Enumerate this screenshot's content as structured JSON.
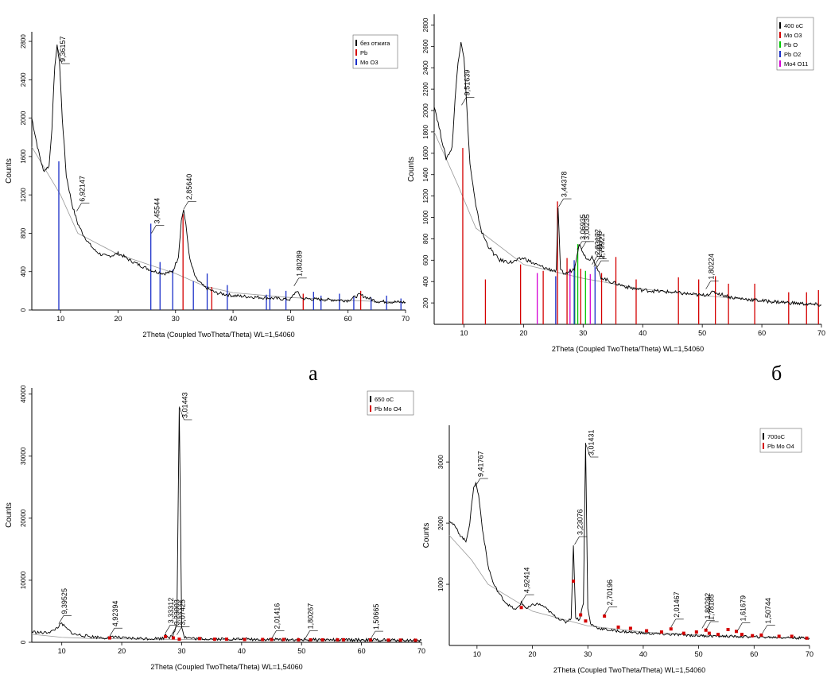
{
  "figure": {
    "panel_letters": [
      "а",
      "б"
    ]
  },
  "chart_data": [
    {
      "type": "line",
      "panel": "а",
      "xlabel": "2Theta (Coupled TwoTheta/Theta) WL=1,54060",
      "ylabel": "Counts",
      "xlim": [
        5,
        70
      ],
      "ylim": [
        0,
        2900
      ],
      "xticks": [
        10,
        20,
        30,
        40,
        50,
        60,
        70
      ],
      "yticks": [
        0,
        400,
        800,
        1200,
        1600,
        2000,
        2400,
        2800
      ],
      "legend_position": "top-right",
      "legend": [
        {
          "label": "без отжига",
          "color": "#000000"
        },
        {
          "label": "Pb",
          "color": "#d40000"
        },
        {
          "label": "Mo O3",
          "color": "#1a2fc8"
        }
      ],
      "series": [
        {
          "name": "без отжига",
          "color": "#000000",
          "x": [
            5,
            6,
            7,
            8,
            8.5,
            9,
            9.4,
            9.8,
            10.3,
            11,
            12,
            13,
            14,
            15,
            16,
            17,
            18,
            19,
            20,
            21,
            22,
            24,
            26,
            28,
            29.5,
            30.5,
            31,
            31.4,
            31.8,
            32.5,
            33.5,
            35,
            37,
            40,
            45,
            50,
            51,
            52,
            55,
            60,
            62,
            65,
            70
          ],
          "y": [
            2000,
            1700,
            1450,
            1500,
            1900,
            2550,
            2750,
            2600,
            2000,
            1400,
            1100,
            900,
            780,
            690,
            620,
            580,
            560,
            570,
            590,
            560,
            520,
            460,
            410,
            380,
            400,
            560,
            930,
            1050,
            880,
            520,
            330,
            240,
            180,
            150,
            130,
            110,
            200,
            120,
            110,
            100,
            160,
            90,
            80
          ]
        }
      ],
      "background": {
        "x": [
          5,
          10,
          13,
          20,
          30,
          35,
          40,
          50,
          60,
          70
        ],
        "y": [
          1700,
          1200,
          800,
          580,
          380,
          250,
          180,
          130,
          100,
          80
        ]
      },
      "reference_lines": [
        {
          "phase": "Pb",
          "color": "#d40000",
          "x": [
            31.3,
            36.3,
            52.2,
            62.2
          ],
          "height": [
            1000,
            240,
            170,
            200
          ]
        },
        {
          "phase": "Mo O3",
          "color": "#1a2fc8",
          "x": [
            9.7,
            25.7,
            27.3,
            29.5,
            33.1,
            35.5,
            39,
            45.8,
            46.4,
            49.2,
            54,
            55.3,
            58.5,
            61,
            64,
            66.7,
            69.2
          ],
          "height": [
            1550,
            900,
            500,
            420,
            300,
            380,
            260,
            160,
            220,
            200,
            190,
            150,
            170,
            140,
            130,
            150,
            120
          ]
        }
      ],
      "peak_labels": [
        {
          "text": "9,36157",
          "x": 9.4,
          "y": 2750
        },
        {
          "text": "6,92147",
          "x": 12.8,
          "y": 1030
        },
        {
          "text": "3,45544",
          "x": 25.8,
          "y": 800
        },
        {
          "text": "2,85640",
          "x": 31.4,
          "y": 1050
        },
        {
          "text": "1,80289",
          "x": 50.6,
          "y": 250
        }
      ]
    },
    {
      "type": "line",
      "panel": "б",
      "xlabel": "2Theta (Coupled TwoTheta/Theta) WL=1,54060",
      "ylabel": "Counts",
      "xlim": [
        5,
        70
      ],
      "ylim": [
        0,
        2900
      ],
      "xticks": [
        10,
        20,
        30,
        40,
        50,
        60,
        70
      ],
      "yticks": [
        200,
        400,
        600,
        800,
        1000,
        1200,
        1400,
        1600,
        1800,
        2000,
        2200,
        2400,
        2600,
        2800
      ],
      "legend_position": "top-right",
      "legend": [
        {
          "label": "400 оС",
          "color": "#000000"
        },
        {
          "label": "Mo O3",
          "color": "#d40000"
        },
        {
          "label": "Pb O",
          "color": "#00c800"
        },
        {
          "label": "Pb O2",
          "color": "#1a2fc8"
        },
        {
          "label": "Mo4 O11",
          "color": "#d400d4"
        }
      ],
      "series": [
        {
          "name": "400 оС",
          "color": "#000000",
          "x": [
            5,
            6,
            7,
            8,
            8.5,
            9,
            9.5,
            10,
            10.5,
            11,
            12,
            13,
            14,
            15,
            16,
            18,
            20,
            22,
            24,
            25.5,
            25.8,
            26.2,
            27,
            28.5,
            29.3,
            29.8,
            30.3,
            31,
            31.5,
            32,
            33,
            35,
            38,
            40,
            45,
            50,
            52,
            55,
            60,
            65,
            70
          ],
          "y": [
            2050,
            1800,
            1550,
            1650,
            2100,
            2450,
            2650,
            2500,
            2000,
            1500,
            1100,
            860,
            740,
            660,
            600,
            580,
            620,
            560,
            520,
            500,
            1100,
            500,
            470,
            520,
            750,
            700,
            640,
            600,
            650,
            560,
            440,
            390,
            340,
            320,
            300,
            270,
            300,
            250,
            220,
            200,
            180
          ]
        }
      ],
      "background": {
        "x": [
          5,
          9,
          12,
          20,
          30,
          40,
          50,
          60,
          70
        ],
        "y": [
          1800,
          1300,
          900,
          560,
          430,
          330,
          270,
          220,
          180
        ]
      },
      "reference_lines": [
        {
          "phase": "Mo O3",
          "color": "#d40000",
          "x": [
            9.8,
            13.6,
            19.5,
            23.3,
            25.7,
            27.3,
            29.6,
            33.1,
            35.5,
            38.9,
            46,
            49.4,
            52.2,
            54.4,
            58.8,
            64.5,
            67.5,
            69.5
          ],
          "height": [
            1650,
            420,
            560,
            500,
            1150,
            620,
            520,
            480,
            630,
            420,
            440,
            420,
            450,
            380,
            380,
            300,
            300,
            320
          ]
        },
        {
          "phase": "Pb O",
          "color": "#00c800",
          "x": [
            28.6,
            29.1,
            30.4
          ],
          "height": [
            560,
            750,
            500
          ]
        },
        {
          "phase": "Pb O2",
          "color": "#1a2fc8",
          "x": [
            25.4,
            28.5,
            32
          ],
          "height": [
            450,
            600,
            540
          ]
        },
        {
          "phase": "Mo4 O11",
          "color": "#d400d4",
          "x": [
            22.3,
            27.8,
            31.2
          ],
          "height": [
            480,
            520,
            470
          ]
        }
      ],
      "peak_labels": [
        {
          "text": "9,51639",
          "x": 9.6,
          "y": 2050
        },
        {
          "text": "3,44378",
          "x": 25.9,
          "y": 1100
        },
        {
          "text": "3,06935",
          "x": 29,
          "y": 700
        },
        {
          "text": "3,00235",
          "x": 29.7,
          "y": 700
        },
        {
          "text": "2,83172",
          "x": 31.5,
          "y": 560
        },
        {
          "text": "2,81776",
          "x": 31.8,
          "y": 540
        },
        {
          "text": "2,79921",
          "x": 32.2,
          "y": 520
        },
        {
          "text": "1,80224",
          "x": 50.6,
          "y": 330
        }
      ]
    },
    {
      "type": "line",
      "panel": "",
      "xlabel": "2Theta (Coupled TwoTheta/Theta) WL=1,54060",
      "ylabel": "Counts",
      "xlim": [
        5,
        70
      ],
      "ylim": [
        0,
        41000
      ],
      "xticks": [
        10,
        20,
        30,
        40,
        50,
        60,
        70
      ],
      "yticks": [
        0,
        10000,
        20000,
        30000,
        40000
      ],
      "legend_position": "top-right",
      "legend": [
        {
          "label": "650 оС",
          "color": "#000000"
        },
        {
          "label": "Pb Mo O4",
          "color": "#d40000"
        }
      ],
      "series": [
        {
          "name": "650 оС",
          "color": "#000000",
          "x": [
            5,
            7,
            8.5,
            9.5,
            10,
            10.8,
            12,
            15,
            18,
            18.5,
            20,
            25,
            27,
            27.3,
            27.8,
            28.5,
            29.2,
            29.6,
            30,
            30.5,
            32,
            35,
            40,
            45,
            50,
            55,
            60,
            65,
            70
          ],
          "y": [
            1700,
            1500,
            1800,
            2600,
            3000,
            2200,
            1300,
            900,
            700,
            1000,
            650,
            600,
            650,
            1500,
            800,
            900,
            3000,
            38000,
            2500,
            800,
            600,
            550,
            500,
            450,
            420,
            400,
            380,
            350,
            330
          ]
        }
      ],
      "background": {
        "x": [
          5,
          10,
          15,
          30,
          50,
          70
        ],
        "y": [
          1300,
          800,
          600,
          450,
          380,
          330
        ]
      },
      "markers": {
        "phase": "Pb Mo O4",
        "color": "#d40000",
        "x": [
          18,
          27.3,
          28.6,
          29.6,
          33,
          35.5,
          37.5,
          40.5,
          43.5,
          45,
          47,
          49.5,
          51.5,
          53.5,
          56,
          57,
          61.5,
          64.5,
          66.5,
          69
        ],
        "y": [
          700,
          900,
          700,
          500,
          600,
          500,
          500,
          450,
          450,
          450,
          450,
          400,
          400,
          400,
          400,
          400,
          380,
          350,
          350,
          330
        ]
      },
      "peak_labels": [
        {
          "text": "9,39525",
          "x": 9.5,
          "y": 3000
        },
        {
          "text": "4,92394",
          "x": 18,
          "y": 1000
        },
        {
          "text": "3,33312",
          "x": 27.3,
          "y": 1500
        },
        {
          "text": "3,23003",
          "x": 28.3,
          "y": 1200
        },
        {
          "text": "3,07425",
          "x": 29.2,
          "y": 1200
        },
        {
          "text": "3,01443",
          "x": 29.6,
          "y": 38000
        },
        {
          "text": "2,01416",
          "x": 45,
          "y": 600
        },
        {
          "text": "1,80267",
          "x": 50.6,
          "y": 600
        },
        {
          "text": "1,50665",
          "x": 61.5,
          "y": 500
        }
      ]
    },
    {
      "type": "line",
      "panel": "",
      "xlabel": "2Theta (Coupled TwoTheta/Theta) WL=1,54060",
      "ylabel": "Counts",
      "xlim": [
        5,
        70
      ],
      "ylim": [
        0,
        3600
      ],
      "xticks": [
        10,
        20,
        30,
        40,
        50,
        60,
        70
      ],
      "yticks": [
        1000,
        2000,
        3000
      ],
      "legend_position": "top-right",
      "legend": [
        {
          "label": "700оС",
          "color": "#000000"
        },
        {
          "label": "Pb Mo O4",
          "color": "#d40000"
        }
      ],
      "series": [
        {
          "name": "700оС",
          "color": "#000000",
          "x": [
            5,
            6,
            7,
            8,
            8.7,
            9.4,
            9.8,
            10.3,
            11,
            12,
            13,
            14,
            15,
            16,
            17,
            18,
            19,
            20,
            21,
            22,
            24,
            26,
            27,
            27.4,
            27.8,
            28.5,
            29.2,
            29.6,
            30,
            30.5,
            32,
            34,
            36,
            40,
            45,
            50,
            55,
            60,
            65,
            70
          ],
          "y": [
            2050,
            1950,
            1800,
            1700,
            2000,
            2600,
            2650,
            2450,
            1900,
            1300,
            1000,
            850,
            720,
            640,
            580,
            700,
            600,
            660,
            680,
            640,
            480,
            380,
            450,
            1650,
            450,
            420,
            700,
            3300,
            600,
            350,
            280,
            250,
            230,
            200,
            180,
            160,
            150,
            140,
            130,
            120
          ]
        }
      ],
      "background": {
        "x": [
          5,
          9,
          12,
          20,
          30,
          40,
          50,
          60,
          70
        ],
        "y": [
          1800,
          1400,
          1000,
          560,
          320,
          220,
          170,
          140,
          120
        ]
      },
      "markers": {
        "phase": "Pb Mo O4",
        "color": "#d40000",
        "x": [
          18,
          27.4,
          28.7,
          29.6,
          33,
          35.5,
          37.7,
          40.6,
          43.3,
          45,
          47.3,
          49.6,
          51.3,
          51.9,
          53.5,
          55.3,
          56.8,
          57.8,
          59.7,
          61.3,
          64.5,
          66.8,
          69.5
        ],
        "y": [
          620,
          1050,
          500,
          400,
          480,
          300,
          280,
          240,
          220,
          270,
          200,
          220,
          250,
          200,
          180,
          260,
          230,
          180,
          160,
          170,
          150,
          150,
          120
        ]
      },
      "peak_labels": [
        {
          "text": "9,41767",
          "x": 9.7,
          "y": 2600
        },
        {
          "text": "4,92414",
          "x": 18,
          "y": 700
        },
        {
          "text": "3,23076",
          "x": 27.6,
          "y": 1650
        },
        {
          "text": "3,01431",
          "x": 29.6,
          "y": 3300
        },
        {
          "text": "2,70196",
          "x": 33,
          "y": 500
        },
        {
          "text": "2,01467",
          "x": 45,
          "y": 300
        },
        {
          "text": "1,80292",
          "x": 50.6,
          "y": 280
        },
        {
          "text": "1,78185",
          "x": 51.3,
          "y": 260
        },
        {
          "text": "1,61679",
          "x": 57,
          "y": 240
        },
        {
          "text": "1,50744",
          "x": 61.5,
          "y": 200
        }
      ]
    }
  ]
}
